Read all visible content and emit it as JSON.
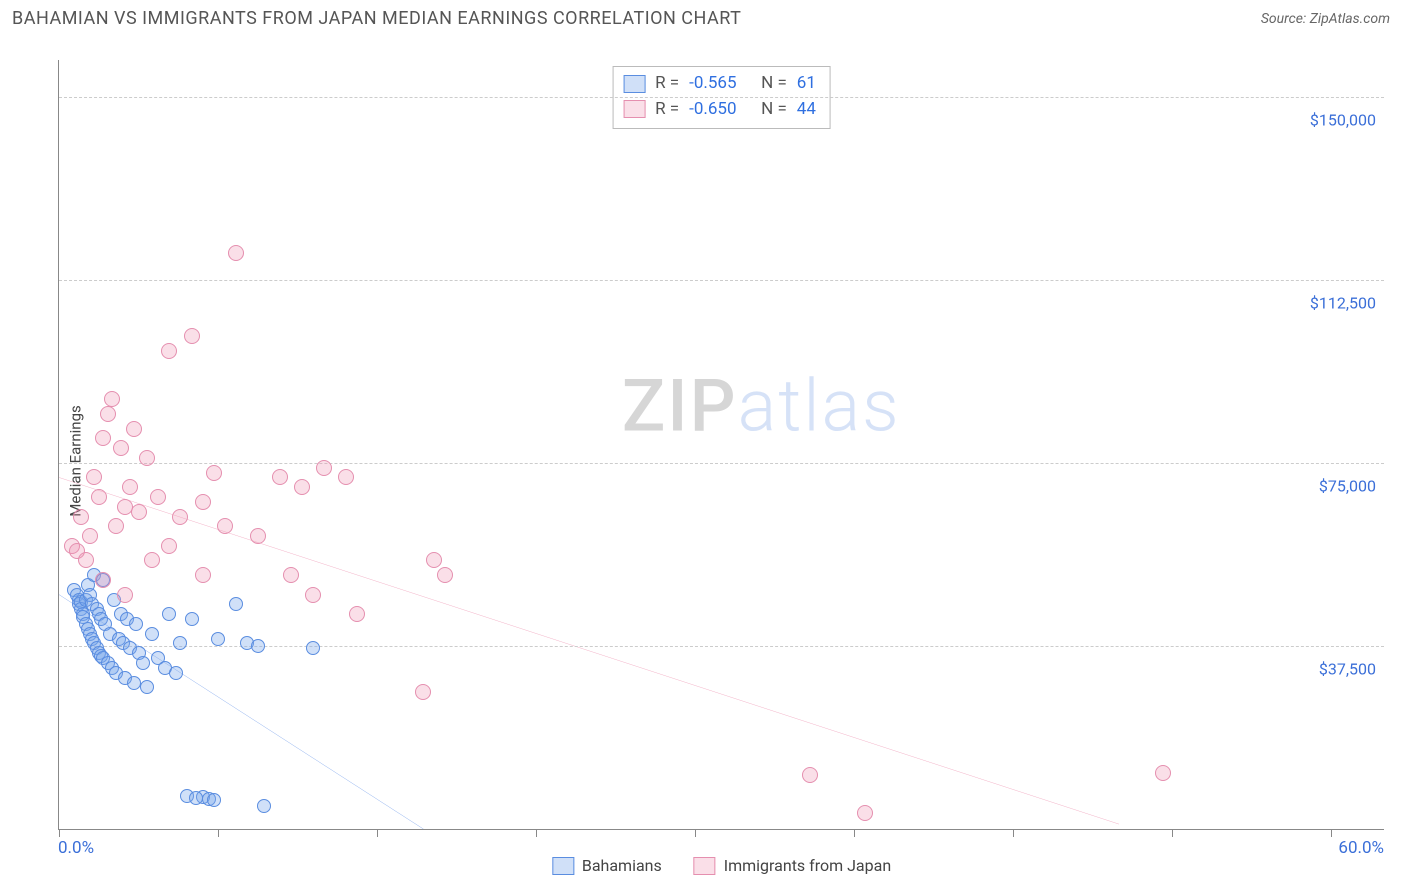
{
  "header": {
    "title": "BAHAMIAN VS IMMIGRANTS FROM JAPAN MEDIAN EARNINGS CORRELATION CHART",
    "source_prefix": "Source: ",
    "source_name": "ZipAtlas.com"
  },
  "watermark": {
    "zip": "ZIP",
    "atlas": "atlas"
  },
  "chart": {
    "type": "scatter",
    "ylabel": "Median Earnings",
    "xlim": [
      0,
      60
    ],
    "ylim": [
      0,
      157500
    ],
    "x_min_label": "0.0%",
    "x_max_label": "60.0%",
    "xtick_positions_pct": [
      0,
      12,
      24,
      36,
      48,
      60,
      72,
      84,
      96
    ],
    "y_gridlines": [
      {
        "value": 37500,
        "label": "$37,500"
      },
      {
        "value": 75000,
        "label": "$75,000"
      },
      {
        "value": 112500,
        "label": "$112,500"
      },
      {
        "value": 150000,
        "label": "$150,000"
      }
    ],
    "background_color": "#ffffff",
    "grid_color": "#cccccc",
    "axis_color": "#888888",
    "tick_label_color": "#3b6fd8",
    "series": [
      {
        "id": "bahamians",
        "label": "Bahamians",
        "marker_radius": 7,
        "fill": "rgba(120,165,235,0.35)",
        "stroke": "#5a8de0",
        "trend_color": "#2f6fe0",
        "trend_width": 2.2,
        "R": "-0.565",
        "N": "61",
        "trend": {
          "x1": 0,
          "y1": 48000,
          "x2": 16.5,
          "y2": 0
        },
        "points": [
          [
            0.7,
            49000
          ],
          [
            0.8,
            48000
          ],
          [
            0.9,
            47000
          ],
          [
            0.9,
            46000
          ],
          [
            1.0,
            46500
          ],
          [
            1.0,
            45000
          ],
          [
            1.1,
            44000
          ],
          [
            1.1,
            43500
          ],
          [
            1.2,
            47000
          ],
          [
            1.2,
            42000
          ],
          [
            1.3,
            50000
          ],
          [
            1.3,
            41000
          ],
          [
            1.4,
            48000
          ],
          [
            1.4,
            40000
          ],
          [
            1.5,
            46000
          ],
          [
            1.5,
            39000
          ],
          [
            1.6,
            52000
          ],
          [
            1.6,
            38000
          ],
          [
            1.7,
            45000
          ],
          [
            1.7,
            37000
          ],
          [
            1.8,
            44000
          ],
          [
            1.8,
            36000
          ],
          [
            1.9,
            43000
          ],
          [
            1.9,
            35500
          ],
          [
            2.0,
            51000
          ],
          [
            2.0,
            35000
          ],
          [
            2.1,
            42000
          ],
          [
            2.2,
            34000
          ],
          [
            2.3,
            40000
          ],
          [
            2.4,
            33000
          ],
          [
            2.5,
            47000
          ],
          [
            2.6,
            32000
          ],
          [
            2.7,
            39000
          ],
          [
            2.8,
            44000
          ],
          [
            2.9,
            38000
          ],
          [
            3.0,
            31000
          ],
          [
            3.1,
            43000
          ],
          [
            3.2,
            37000
          ],
          [
            3.4,
            30000
          ],
          [
            3.5,
            42000
          ],
          [
            3.6,
            36000
          ],
          [
            3.8,
            34000
          ],
          [
            4.0,
            29000
          ],
          [
            4.2,
            40000
          ],
          [
            4.5,
            35000
          ],
          [
            4.8,
            33000
          ],
          [
            5.0,
            44000
          ],
          [
            5.3,
            32000
          ],
          [
            5.5,
            38000
          ],
          [
            6.0,
            43000
          ],
          [
            6.5,
            6500
          ],
          [
            6.8,
            6200
          ],
          [
            7.0,
            6000
          ],
          [
            7.2,
            39000
          ],
          [
            8.0,
            46000
          ],
          [
            8.5,
            38000
          ],
          [
            9.0,
            37500
          ],
          [
            9.3,
            4800
          ],
          [
            11.5,
            37000
          ],
          [
            5.8,
            6800
          ],
          [
            6.2,
            6400
          ]
        ]
      },
      {
        "id": "japan",
        "label": "Immigrants from Japan",
        "marker_radius": 8,
        "fill": "rgba(240,150,180,0.30)",
        "stroke": "#e58faf",
        "trend_color": "#e86f96",
        "trend_width": 2.2,
        "R": "-0.650",
        "N": "44",
        "trend": {
          "x1": 0,
          "y1": 72000,
          "x2": 48,
          "y2": 1000
        },
        "points": [
          [
            0.6,
            58000
          ],
          [
            0.8,
            57000
          ],
          [
            1.0,
            64000
          ],
          [
            1.2,
            55000
          ],
          [
            1.4,
            60000
          ],
          [
            1.6,
            72000
          ],
          [
            1.8,
            68000
          ],
          [
            2.0,
            80000
          ],
          [
            2.2,
            85000
          ],
          [
            2.4,
            88000
          ],
          [
            2.6,
            62000
          ],
          [
            2.8,
            78000
          ],
          [
            3.0,
            66000
          ],
          [
            3.2,
            70000
          ],
          [
            3.4,
            82000
          ],
          [
            3.6,
            65000
          ],
          [
            4.0,
            76000
          ],
          [
            4.5,
            68000
          ],
          [
            5.0,
            98000
          ],
          [
            5.5,
            64000
          ],
          [
            6.0,
            101000
          ],
          [
            6.5,
            67000
          ],
          [
            7.0,
            73000
          ],
          [
            7.5,
            62000
          ],
          [
            8.0,
            118000
          ],
          [
            9.0,
            60000
          ],
          [
            10.0,
            72000
          ],
          [
            10.5,
            52000
          ],
          [
            11.0,
            70000
          ],
          [
            11.5,
            48000
          ],
          [
            12.0,
            74000
          ],
          [
            13.0,
            72000
          ],
          [
            13.5,
            44000
          ],
          [
            16.5,
            28000
          ],
          [
            17.0,
            55000
          ],
          [
            17.5,
            52000
          ],
          [
            34.0,
            11000
          ],
          [
            36.5,
            3200
          ],
          [
            50.0,
            11500
          ],
          [
            2.0,
            51000
          ],
          [
            3.0,
            48000
          ],
          [
            4.2,
            55000
          ],
          [
            5.0,
            58000
          ],
          [
            6.5,
            52000
          ]
        ]
      }
    ],
    "corr_legend": {
      "r_label": "R =",
      "n_label": "N =",
      "value_color": "#2f6fe0",
      "text_color": "#555"
    }
  }
}
